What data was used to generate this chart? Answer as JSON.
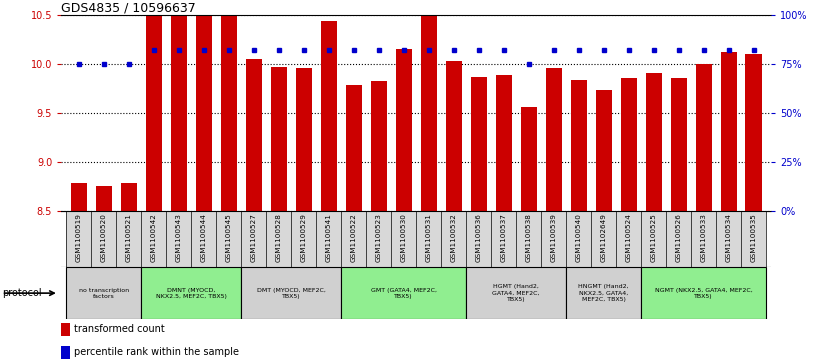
{
  "title": "GDS4835 / 10596637",
  "samples": [
    "GSM1100519",
    "GSM1100520",
    "GSM1100521",
    "GSM1100542",
    "GSM1100543",
    "GSM1100544",
    "GSM1100545",
    "GSM1100527",
    "GSM1100528",
    "GSM1100529",
    "GSM1100541",
    "GSM1100522",
    "GSM1100523",
    "GSM1100530",
    "GSM1100531",
    "GSM1100532",
    "GSM1100536",
    "GSM1100537",
    "GSM1100538",
    "GSM1100539",
    "GSM1100540",
    "GSM1102649",
    "GSM1100524",
    "GSM1100525",
    "GSM1100526",
    "GSM1100533",
    "GSM1100534",
    "GSM1100535"
  ],
  "transformed_count": [
    8.78,
    8.75,
    8.78,
    10.49,
    10.5,
    10.5,
    10.5,
    10.05,
    9.96,
    9.95,
    10.43,
    9.78,
    9.82,
    10.15,
    10.5,
    10.03,
    9.86,
    9.88,
    9.56,
    9.95,
    9.83,
    9.73,
    9.85,
    9.9,
    9.85,
    10.0,
    10.12,
    10.1
  ],
  "percentile_rank": [
    75,
    75,
    75,
    82,
    82,
    82,
    82,
    82,
    82,
    82,
    82,
    82,
    82,
    82,
    82,
    82,
    82,
    82,
    75,
    82,
    82,
    82,
    82,
    82,
    82,
    82,
    82,
    82
  ],
  "groups": [
    {
      "label": "no transcription\nfactors",
      "start": 0,
      "end": 3,
      "color": "#d0d0d0"
    },
    {
      "label": "DMNT (MYOCD,\nNKX2.5, MEF2C, TBX5)",
      "start": 3,
      "end": 7,
      "color": "#90ee90"
    },
    {
      "label": "DMT (MYOCD, MEF2C,\nTBX5)",
      "start": 7,
      "end": 11,
      "color": "#d0d0d0"
    },
    {
      "label": "GMT (GATA4, MEF2C,\nTBX5)",
      "start": 11,
      "end": 16,
      "color": "#90ee90"
    },
    {
      "label": "HGMT (Hand2,\nGATA4, MEF2C,\nTBX5)",
      "start": 16,
      "end": 20,
      "color": "#d0d0d0"
    },
    {
      "label": "HNGMT (Hand2,\nNKX2.5, GATA4,\nMEF2C, TBX5)",
      "start": 20,
      "end": 23,
      "color": "#d0d0d0"
    },
    {
      "label": "NGMT (NKX2.5, GATA4, MEF2C,\nTBX5)",
      "start": 23,
      "end": 28,
      "color": "#90ee90"
    }
  ],
  "ylim_left": [
    8.5,
    10.5
  ],
  "ylim_right": [
    0,
    100
  ],
  "yticks_left": [
    8.5,
    9.0,
    9.5,
    10.0,
    10.5
  ],
  "yticks_right": [
    0,
    25,
    50,
    75,
    100
  ],
  "bar_color": "#cc0000",
  "dot_color": "#0000cc",
  "bar_width": 0.65
}
